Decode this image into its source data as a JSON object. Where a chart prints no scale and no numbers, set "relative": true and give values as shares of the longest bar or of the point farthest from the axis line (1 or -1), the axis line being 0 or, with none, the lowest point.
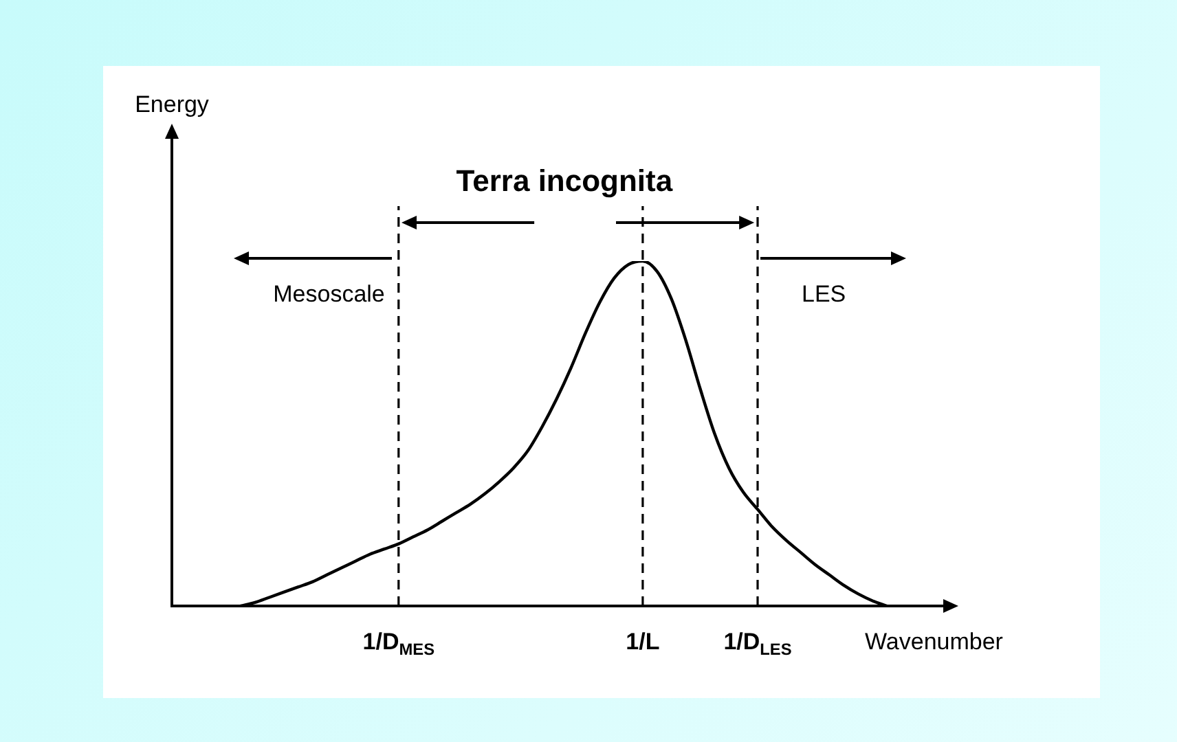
{
  "chart_data": {
    "type": "line",
    "relative": true,
    "xlabel": "Wavenumber",
    "categories": [
      null,
      null,
      null,
      null,
      null,
      null,
      null,
      null,
      null,
      null,
      null,
      "1/D$_{MES}$",
      null,
      null,
      null,
      null,
      null,
      null,
      null,
      null,
      null,
      null,
      null,
      null,
      null,
      null,
      null,
      null,
      "1/L",
      null,
      null,
      null,
      null,
      null,
      null,
      null,
      "1/D$_{LES}$",
      null,
      null,
      null,
      null,
      null,
      null,
      null,
      null,
      null
    ],
    "series": [
      {
        "color": "#000000",
        "values": [
          0,
          0.01,
          0.025,
          0.04,
          0.055,
          0.07,
          0.09,
          0.11,
          0.13,
          0.15,
          0.165,
          0.18,
          0.2,
          0.22,
          0.245,
          0.27,
          0.295,
          0.325,
          0.36,
          0.4,
          0.45,
          0.52,
          0.6,
          0.69,
          0.79,
          0.88,
          0.95,
          0.99,
          1,
          0.97,
          0.89,
          0.77,
          0.63,
          0.5,
          0.4,
          0.33,
          0.28,
          0.23,
          0.19,
          0.155,
          0.12,
          0.09,
          0.06,
          0.035,
          0.015,
          0
        ]
      }
    ],
    "ref_lines": [
      {
        "axis": "x",
        "value": "1/D$_{MES}$",
        "line_style": "dashed",
        "color": "#000000"
      },
      {
        "axis": "x",
        "value": "1/L",
        "line_style": "dashed",
        "color": "#000000"
      },
      {
        "axis": "x",
        "value": "1/D$_{LES}$",
        "line_style": "dashed",
        "color": "#000000"
      }
    ],
    "annotations": [
      "Terra incognita",
      "Mesoscale",
      "LES",
      "Energy"
    ],
    "legend": false,
    "marker": "none",
    "line_style": "solid"
  }
}
